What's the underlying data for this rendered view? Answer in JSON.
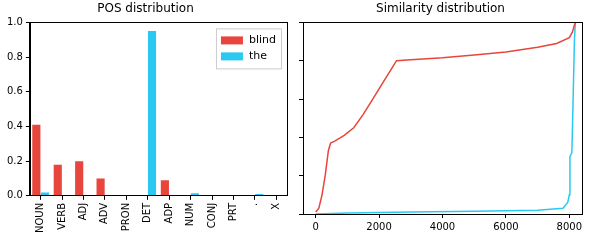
{
  "chart_data": [
    {
      "type": "bar",
      "title": "POS distribution",
      "categories": [
        "NOUN",
        "VERB",
        "ADJ",
        "ADV",
        "PRON",
        "DET",
        "ADP",
        "NUM",
        "CONJ",
        "PRT",
        ".",
        "X"
      ],
      "series": [
        {
          "name": "blind",
          "color": "#e8453c",
          "values": [
            0.41,
            0.18,
            0.2,
            0.1,
            0,
            0,
            0.09,
            0,
            0,
            0,
            0,
            0.005
          ]
        },
        {
          "name": "the",
          "color": "#2bc9f2",
          "values": [
            0.02,
            0,
            0,
            0,
            0,
            0.95,
            0,
            0.015,
            0,
            0,
            0.01,
            0
          ]
        }
      ],
      "ylim": [
        0,
        1.0
      ],
      "yticks": [
        {
          "value": 0,
          "label": "0.0"
        },
        0.2,
        0.4,
        0.6,
        0.8,
        {
          "value": 1.0,
          "label": "1.0"
        }
      ],
      "grid": false,
      "legend": "upper right"
    },
    {
      "type": "line",
      "title": "Similarity distribution",
      "series": [
        {
          "color": "#e8453c",
          "x": [
            0,
            100,
            200,
            300,
            400,
            470,
            600,
            900,
            1200,
            1500,
            1800,
            2100,
            2400,
            2550,
            3000,
            4000,
            5000,
            6000,
            7000,
            7600,
            8000,
            8100,
            8150,
            8190
          ],
          "values": [
            0.01,
            0.03,
            0.1,
            0.2,
            0.33,
            0.37,
            0.38,
            0.41,
            0.45,
            0.52,
            0.6,
            0.68,
            0.76,
            0.8,
            0.805,
            0.815,
            0.83,
            0.845,
            0.87,
            0.89,
            0.92,
            0.95,
            0.98,
            1.0
          ]
        },
        {
          "color": "#2bc9f2",
          "x": [
            0,
            1000,
            3000,
            5000,
            7000,
            7800,
            7950,
            8000,
            8020,
            8080,
            8120,
            8160,
            8190
          ],
          "values": [
            0.0,
            0.005,
            0.01,
            0.015,
            0.02,
            0.03,
            0.06,
            0.1,
            0.3,
            0.32,
            0.6,
            0.9,
            1.0
          ]
        }
      ],
      "xlim": [
        -400,
        8400
      ],
      "xticks": [
        0,
        2000,
        4000,
        6000,
        8000
      ],
      "ylim": [
        0,
        1
      ],
      "yticks": [
        0,
        0.2,
        0.4,
        0.6,
        0.8,
        1
      ],
      "tick_labels": "x",
      "grid": false
    }
  ]
}
